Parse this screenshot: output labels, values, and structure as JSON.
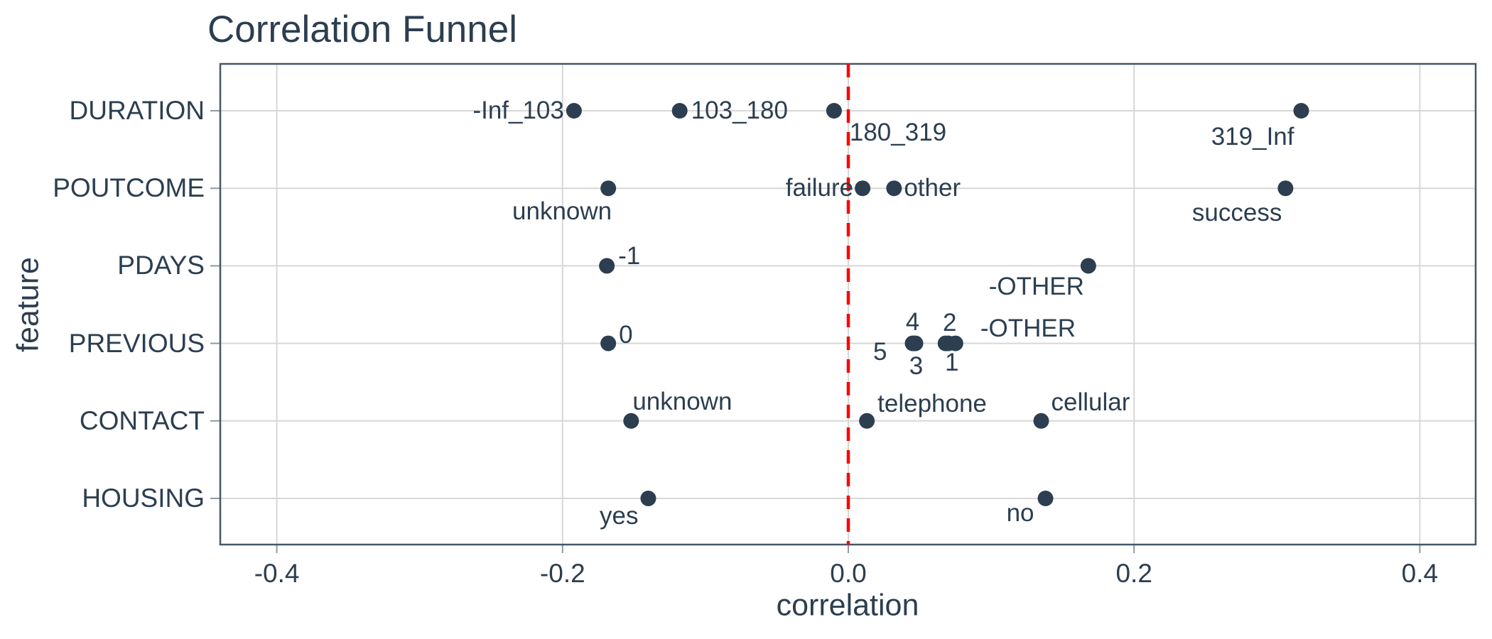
{
  "chart_data": {
    "type": "scatter",
    "title": "Correlation Funnel",
    "xlabel": "correlation",
    "ylabel": "feature",
    "x_ticks": [
      "-0.4",
      "-0.2",
      "0.0",
      "0.2",
      "0.4"
    ],
    "x_tick_values": [
      -0.4,
      -0.2,
      0.0,
      0.2,
      0.4
    ],
    "xlim": [
      -0.44,
      0.44
    ],
    "grid": true,
    "legend": "none",
    "vline": {
      "x": 0.0,
      "color": "#FF0000",
      "style": "dashed"
    },
    "colors": {
      "text": "#2c3e50",
      "points": "#2c3e50",
      "grid": "#d7d7d7",
      "border": "#44576a",
      "ticks": "#8f9aa3",
      "vline": "#FF0000",
      "background": "#FFFFFF"
    },
    "features": [
      "DURATION",
      "POUTCOME",
      "PDAYS",
      "PREVIOUS",
      "CONTACT",
      "HOUSING"
    ],
    "series": [
      {
        "feature": "DURATION",
        "points": [
          {
            "bin": "-Inf_103",
            "correlation": -0.192,
            "anchor": "end",
            "dx": -14,
            "dy": 0
          },
          {
            "bin": "103_180",
            "correlation": -0.118,
            "anchor": "start",
            "dx": 16,
            "dy": 0
          },
          {
            "bin": "180_319",
            "correlation": -0.01,
            "anchor": "start",
            "dx": 22,
            "dy": 31
          },
          {
            "bin": "319_Inf",
            "correlation": 0.317,
            "anchor": "end",
            "dx": -10,
            "dy": 37
          }
        ]
      },
      {
        "feature": "POUTCOME",
        "points": [
          {
            "bin": "unknown",
            "correlation": -0.168,
            "anchor": "end",
            "dx": 5,
            "dy": 33
          },
          {
            "bin": "failure",
            "correlation": 0.01,
            "anchor": "end",
            "dx": -13,
            "dy": 0
          },
          {
            "bin": "other",
            "correlation": 0.032,
            "anchor": "start",
            "dx": 14,
            "dy": 0
          },
          {
            "bin": "success",
            "correlation": 0.306,
            "anchor": "end",
            "dx": -5,
            "dy": 35
          }
        ]
      },
      {
        "feature": "PDAYS",
        "points": [
          {
            "bin": "-1",
            "correlation": -0.169,
            "anchor": "start",
            "dx": 16,
            "dy": -13
          },
          {
            "bin": "-OTHER",
            "correlation": 0.168,
            "anchor": "end",
            "dx": -6,
            "dy": 30
          }
        ]
      },
      {
        "feature": "PREVIOUS",
        "points": [
          {
            "bin": "0",
            "correlation": -0.168,
            "anchor": "start",
            "dx": 15,
            "dy": -12
          },
          {
            "bin": "5",
            "correlation": 0.045,
            "anchor": "end",
            "dx": -36,
            "dy": 12
          },
          {
            "bin": "4",
            "correlation": 0.046,
            "anchor": "middle",
            "dx": -2,
            "dy": -30
          },
          {
            "bin": "3",
            "correlation": 0.047,
            "anchor": "middle",
            "dx": 1,
            "dy": 32
          },
          {
            "bin": "2",
            "correlation": 0.068,
            "anchor": "middle",
            "dx": 6,
            "dy": -29
          },
          {
            "bin": "1",
            "correlation": 0.07,
            "anchor": "middle",
            "dx": 5,
            "dy": 27
          },
          {
            "bin": "-OTHER",
            "correlation": 0.075,
            "anchor": "start",
            "dx": 35,
            "dy": -21
          }
        ]
      },
      {
        "feature": "CONTACT",
        "points": [
          {
            "bin": "unknown",
            "correlation": -0.152,
            "anchor": "start",
            "dx": 2,
            "dy": -27
          },
          {
            "bin": "telephone",
            "correlation": 0.013,
            "anchor": "start",
            "dx": 15,
            "dy": -24
          },
          {
            "bin": "cellular",
            "correlation": 0.135,
            "anchor": "start",
            "dx": 14,
            "dy": -26
          }
        ]
      },
      {
        "feature": "HOUSING",
        "points": [
          {
            "bin": "yes",
            "correlation": -0.14,
            "anchor": "end",
            "dx": -14,
            "dy": 25
          },
          {
            "bin": "no",
            "correlation": 0.138,
            "anchor": "end",
            "dx": -16,
            "dy": 21
          }
        ]
      }
    ]
  }
}
